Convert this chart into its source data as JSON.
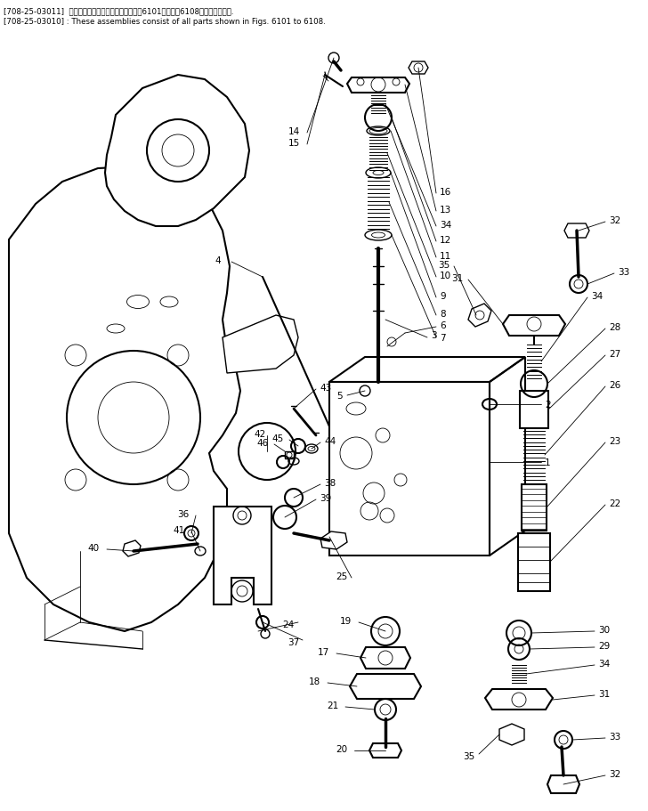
{
  "fig_width": 7.28,
  "fig_height": 9.12,
  "dpi": 100,
  "bg_color": "#ffffff",
  "header_line1": "[708-25-03011]  これらのアセンブリの構成部品は第6101図から第6108図まで含みます.",
  "header_line2": "[708-25-03010] : These assemblies consist of all parts shown in Figs. 6101 to 6108.",
  "lw_main": 1.0,
  "lw_thin": 0.6,
  "lw_thick": 1.5
}
